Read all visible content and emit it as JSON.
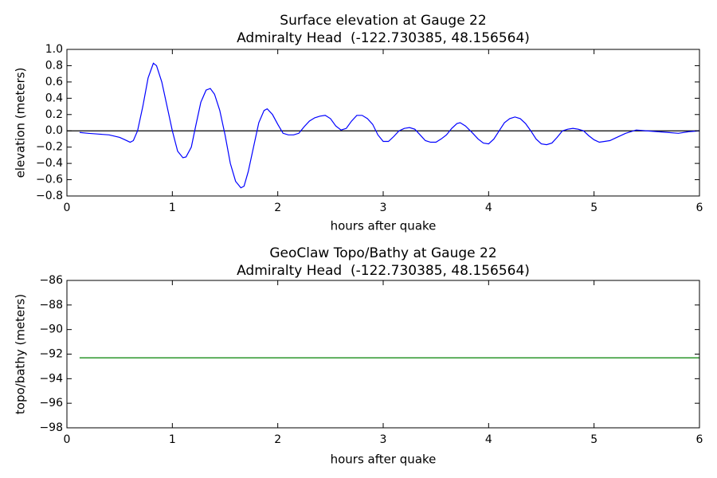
{
  "chart_data": [
    {
      "type": "line",
      "title": "Surface elevation at Gauge 22",
      "subtitle": "Admiralty Head  (-122.730385, 48.156564)",
      "xlabel": "hours after quake",
      "ylabel": "elevation (meters)",
      "xlim": [
        0,
        6
      ],
      "xticks": [
        0,
        1,
        2,
        3,
        4,
        5,
        6
      ],
      "ylim": [
        -0.8,
        1.0
      ],
      "yticks": [
        {
          "value": -0.8,
          "label": "−0.8"
        },
        {
          "value": -0.6,
          "label": "−0.6"
        },
        {
          "value": -0.4,
          "label": "−0.4"
        },
        {
          "value": -0.2,
          "label": "−0.2"
        },
        {
          "value": 0,
          "label": "0.0"
        },
        0.2,
        0.4,
        0.6,
        0.8,
        {
          "value": 1,
          "label": "1.0"
        }
      ],
      "hline": 0,
      "series": [
        {
          "color": "#0000ff",
          "x": [
            0.12,
            0.2,
            0.3,
            0.4,
            0.5,
            0.55,
            0.6,
            0.63,
            0.67,
            0.72,
            0.77,
            0.82,
            0.85,
            0.9,
            0.95,
            1.0,
            1.05,
            1.1,
            1.13,
            1.18,
            1.22,
            1.27,
            1.32,
            1.36,
            1.4,
            1.45,
            1.5,
            1.55,
            1.6,
            1.65,
            1.68,
            1.72,
            1.77,
            1.82,
            1.87,
            1.9,
            1.95,
            2.0,
            2.05,
            2.1,
            2.15,
            2.2,
            2.25,
            2.3,
            2.35,
            2.4,
            2.45,
            2.5,
            2.55,
            2.6,
            2.65,
            2.7,
            2.75,
            2.8,
            2.85,
            2.9,
            2.95,
            3.0,
            3.05,
            3.1,
            3.15,
            3.2,
            3.25,
            3.3,
            3.35,
            3.4,
            3.45,
            3.5,
            3.55,
            3.6,
            3.65,
            3.7,
            3.73,
            3.78,
            3.85,
            3.9,
            3.95,
            4.0,
            4.05,
            4.1,
            4.15,
            4.2,
            4.25,
            4.3,
            4.35,
            4.4,
            4.45,
            4.5,
            4.55,
            4.6,
            4.65,
            4.7,
            4.75,
            4.8,
            4.85,
            4.9,
            4.95,
            5.0,
            5.05,
            5.1,
            5.15,
            5.2,
            5.3,
            5.4,
            5.5,
            5.6,
            5.7,
            5.8,
            5.9,
            6.0
          ],
          "values": [
            -0.02,
            -0.03,
            -0.04,
            -0.05,
            -0.08,
            -0.11,
            -0.14,
            -0.12,
            0.0,
            0.3,
            0.65,
            0.83,
            0.8,
            0.6,
            0.3,
            0.0,
            -0.25,
            -0.33,
            -0.32,
            -0.2,
            0.05,
            0.35,
            0.5,
            0.52,
            0.45,
            0.25,
            -0.05,
            -0.4,
            -0.62,
            -0.7,
            -0.68,
            -0.5,
            -0.2,
            0.1,
            0.25,
            0.27,
            0.2,
            0.08,
            -0.03,
            -0.05,
            -0.05,
            -0.03,
            0.05,
            0.12,
            0.16,
            0.18,
            0.19,
            0.15,
            0.06,
            0.01,
            0.03,
            0.12,
            0.19,
            0.19,
            0.15,
            0.08,
            -0.05,
            -0.13,
            -0.13,
            -0.07,
            0.0,
            0.03,
            0.04,
            0.02,
            -0.05,
            -0.12,
            -0.14,
            -0.14,
            -0.1,
            -0.05,
            0.03,
            0.09,
            0.1,
            0.06,
            -0.03,
            -0.1,
            -0.15,
            -0.16,
            -0.1,
            0.0,
            0.1,
            0.15,
            0.17,
            0.15,
            0.09,
            0.0,
            -0.1,
            -0.16,
            -0.17,
            -0.15,
            -0.08,
            0.0,
            0.02,
            0.03,
            0.02,
            0.0,
            -0.06,
            -0.11,
            -0.14,
            -0.13,
            -0.12,
            -0.09,
            -0.03,
            0.01,
            0.0,
            -0.01,
            -0.02,
            -0.03,
            -0.01,
            0.0
          ]
        }
      ]
    },
    {
      "type": "line",
      "title": "GeoClaw Topo/Bathy at Gauge 22",
      "subtitle": "Admiralty Head  (-122.730385, 48.156564)",
      "xlabel": "hours after quake",
      "ylabel": "topo/bathy (meters)",
      "xlim": [
        0,
        6
      ],
      "xticks": [
        0,
        1,
        2,
        3,
        4,
        5,
        6
      ],
      "ylim": [
        -98,
        -86
      ],
      "yticks": [
        {
          "value": -98,
          "label": "−98"
        },
        {
          "value": -96,
          "label": "−96"
        },
        {
          "value": -94,
          "label": "−94"
        },
        {
          "value": -92,
          "label": "−92"
        },
        {
          "value": -90,
          "label": "−90"
        },
        {
          "value": -88,
          "label": "−88"
        },
        {
          "value": -86,
          "label": "−86"
        }
      ],
      "series": [
        {
          "color": "#008000",
          "x": [
            0.12,
            6
          ],
          "values": [
            -92.3,
            -92.3
          ]
        }
      ]
    }
  ]
}
